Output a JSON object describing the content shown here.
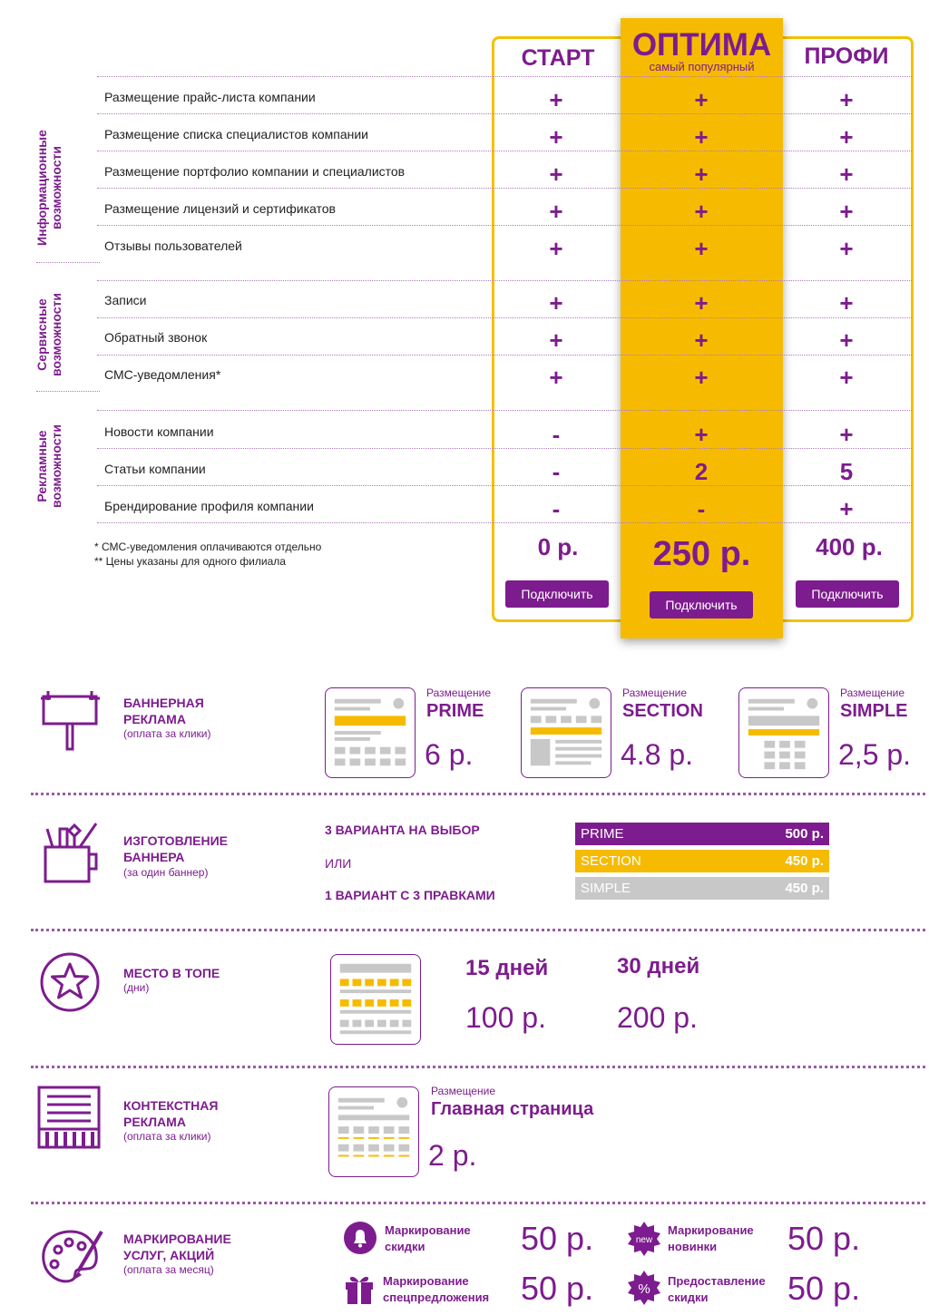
{
  "plans": {
    "start": {
      "title": "СТАРТ",
      "price": "0 р.",
      "button": "Подключить"
    },
    "optima": {
      "title": "ОПТИМА",
      "subtitle": "самый популярный",
      "price": "250 р.",
      "button": "Подключить"
    },
    "profi": {
      "title": "ПРОФИ",
      "price": "400 р.",
      "button": "Подключить"
    }
  },
  "groups": [
    {
      "label_line1": "Информационные",
      "label_line2": "возможности"
    },
    {
      "label_line1": "Сервисные",
      "label_line2": "возможности"
    },
    {
      "label_line1": "Рекламные",
      "label_line2": "возможности"
    }
  ],
  "features": [
    {
      "label": "Размещение прайс-листа компании",
      "start": "+",
      "optima": "+",
      "profi": "+"
    },
    {
      "label": "Размещение списка специалистов компании",
      "start": "+",
      "optima": "+",
      "profi": "+"
    },
    {
      "label": "Размещение портфолио компании и специалистов",
      "start": "+",
      "optima": "+",
      "profi": "+"
    },
    {
      "label": "Размещение лицензий и сертификатов",
      "start": "+",
      "optima": "+",
      "profi": "+"
    },
    {
      "label": "Отзывы пользователей",
      "start": "+",
      "optima": "+",
      "profi": "+"
    },
    {
      "label": "Записи",
      "start": "+",
      "optima": "+",
      "profi": "+"
    },
    {
      "label": "Обратный звонок",
      "start": "+",
      "optima": "+",
      "profi": "+"
    },
    {
      "label": "СМС-уведомления*",
      "start": "+",
      "optima": "+",
      "profi": "+"
    },
    {
      "label": "Новости компании",
      "start": "-",
      "optima": "+",
      "profi": "+"
    },
    {
      "label": "Статьи компании",
      "start": "-",
      "optima": "2",
      "profi": "5"
    },
    {
      "label": "Брендирование профиля компании",
      "start": "-",
      "optima": "-",
      "profi": "+"
    }
  ],
  "footnotes": {
    "note1": "*   СМС-уведомления оплачиваются отдельно",
    "note2": "** Цены указаны для одного филиала"
  },
  "banner": {
    "title1": "БАННЕРНАЯ",
    "title2": "РЕКЛАМА",
    "sub": "(оплата за клики)",
    "options": [
      {
        "label": "Размещение",
        "name": "PRIME",
        "price": "6 р."
      },
      {
        "label": "Размещение",
        "name": "SECTION",
        "price": "4.8 р."
      },
      {
        "label": "Размещение",
        "name": "SIMPLE",
        "price": "2,5 р."
      }
    ]
  },
  "production": {
    "title1": "ИЗГОТОВЛЕНИЕ",
    "title2": "БАННЕРА",
    "sub": "(за один баннер)",
    "variant1": "3 ВАРИАНТА НА ВЫБОР",
    "or": "ИЛИ",
    "variant2": "1 ВАРИАНТ С 3 ПРАВКАМИ",
    "prices": [
      {
        "name": "PRIME",
        "price": "500 р.",
        "color": "#7d1c8e"
      },
      {
        "name": "SECTION",
        "price": "450 р.",
        "color": "#f6bb00"
      },
      {
        "name": "SIMPLE",
        "price": "450 р.",
        "color": "#c8c8c8"
      }
    ]
  },
  "top": {
    "title": "МЕСТО В ТОПЕ",
    "sub": "(дни)",
    "options": [
      {
        "days": "15 дней",
        "price": "100 р."
      },
      {
        "days": "30 дней",
        "price": "200 р."
      }
    ]
  },
  "context": {
    "title1": "КОНТЕКСТНАЯ",
    "title2": "РЕКЛАМА",
    "sub": "(оплата за клики)",
    "label": "Размещение",
    "name": "Главная страница",
    "price": "2 р."
  },
  "marking": {
    "title1": "МАРКИРОВАНИЕ",
    "title2": "УСЛУГ, АКЦИЙ",
    "sub": "(оплата за месяц)",
    "items": [
      {
        "line1": "Маркирование",
        "line2": "скидки",
        "price": "50 р.",
        "icon": "bell-icon"
      },
      {
        "line1": "Маркирование",
        "line2": "новинки",
        "price": "50 р.",
        "icon": "new-badge-icon",
        "badge": "new"
      },
      {
        "line1": "Маркирование",
        "line2": "спецпредложения",
        "price": "50 р.",
        "icon": "gift-icon"
      },
      {
        "line1": "Предоставление",
        "line2": "скидки",
        "price": "50 р.",
        "icon": "percent-badge-icon",
        "badge": "%"
      }
    ]
  },
  "colors": {
    "purple": "#7d1c8e",
    "yellow": "#f6bb00",
    "gray": "#c8c8c8"
  }
}
